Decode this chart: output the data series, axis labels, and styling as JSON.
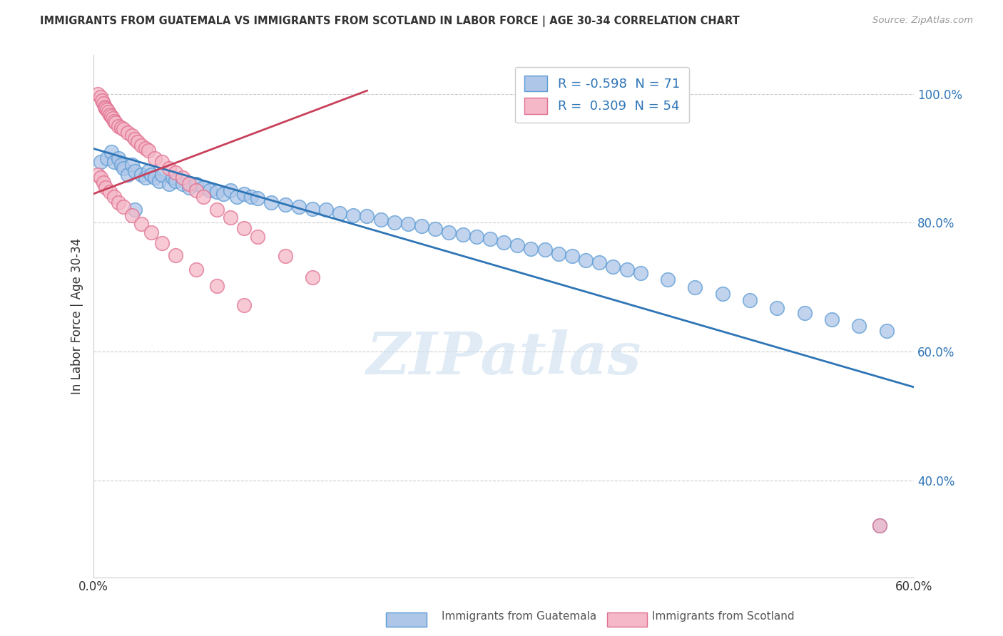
{
  "title": "IMMIGRANTS FROM GUATEMALA VS IMMIGRANTS FROM SCOTLAND IN LABOR FORCE | AGE 30-34 CORRELATION CHART",
  "source": "Source: ZipAtlas.com",
  "xlabel_blue": "Immigrants from Guatemala",
  "xlabel_pink": "Immigrants from Scotland",
  "ylabel": "In Labor Force | Age 30-34",
  "xlim": [
    0.0,
    0.6
  ],
  "ylim": [
    0.25,
    1.06
  ],
  "yticks": [
    0.4,
    0.6,
    0.8,
    1.0
  ],
  "ytick_labels": [
    "40.0%",
    "60.0%",
    "80.0%",
    "100.0%"
  ],
  "xticks": [
    0.0,
    0.1,
    0.2,
    0.3,
    0.4,
    0.5,
    0.6
  ],
  "xtick_labels": [
    "0.0%",
    "",
    "",
    "",
    "",
    "",
    "60.0%"
  ],
  "R_blue": -0.598,
  "N_blue": 71,
  "R_pink": 0.309,
  "N_pink": 54,
  "blue_color": "#aec6e8",
  "blue_edge_color": "#5b9bd5",
  "blue_line_color": "#2e75b6",
  "pink_color": "#f4b8c8",
  "pink_edge_color": "#e07090",
  "pink_line_color": "#c9405a",
  "legend_R_color": "#2e75b6",
  "watermark": "ZIPatlas",
  "blue_trend_x0": 0.0,
  "blue_trend_y0": 0.915,
  "blue_trend_x1": 0.6,
  "blue_trend_y1": 0.545,
  "pink_trend_x0": 0.0,
  "pink_trend_y0": 0.845,
  "pink_trend_x1": 0.2,
  "pink_trend_y1": 1.005,
  "blue_x": [
    0.005,
    0.01,
    0.013,
    0.015,
    0.018,
    0.02,
    0.022,
    0.025,
    0.028,
    0.03,
    0.035,
    0.038,
    0.04,
    0.042,
    0.045,
    0.048,
    0.05,
    0.055,
    0.058,
    0.06,
    0.065,
    0.07,
    0.075,
    0.08,
    0.085,
    0.09,
    0.095,
    0.1,
    0.105,
    0.11,
    0.115,
    0.12,
    0.13,
    0.14,
    0.15,
    0.16,
    0.17,
    0.18,
    0.19,
    0.2,
    0.21,
    0.22,
    0.23,
    0.24,
    0.25,
    0.26,
    0.27,
    0.28,
    0.29,
    0.3,
    0.31,
    0.32,
    0.33,
    0.34,
    0.35,
    0.36,
    0.37,
    0.38,
    0.39,
    0.4,
    0.42,
    0.44,
    0.46,
    0.48,
    0.5,
    0.52,
    0.54,
    0.56,
    0.58,
    0.03,
    0.575
  ],
  "blue_y": [
    0.895,
    0.9,
    0.91,
    0.895,
    0.9,
    0.89,
    0.885,
    0.875,
    0.89,
    0.88,
    0.875,
    0.87,
    0.88,
    0.875,
    0.87,
    0.865,
    0.875,
    0.86,
    0.87,
    0.865,
    0.86,
    0.855,
    0.86,
    0.855,
    0.85,
    0.848,
    0.845,
    0.85,
    0.84,
    0.845,
    0.84,
    0.838,
    0.832,
    0.828,
    0.825,
    0.822,
    0.82,
    0.815,
    0.812,
    0.81,
    0.805,
    0.8,
    0.798,
    0.795,
    0.79,
    0.785,
    0.782,
    0.778,
    0.775,
    0.77,
    0.765,
    0.76,
    0.758,
    0.752,
    0.748,
    0.742,
    0.738,
    0.732,
    0.728,
    0.722,
    0.712,
    0.7,
    0.69,
    0.68,
    0.668,
    0.66,
    0.65,
    0.64,
    0.632,
    0.82,
    0.33
  ],
  "pink_x": [
    0.003,
    0.005,
    0.006,
    0.007,
    0.008,
    0.009,
    0.01,
    0.011,
    0.012,
    0.013,
    0.014,
    0.015,
    0.016,
    0.018,
    0.02,
    0.022,
    0.025,
    0.028,
    0.03,
    0.032,
    0.035,
    0.038,
    0.04,
    0.045,
    0.05,
    0.055,
    0.06,
    0.065,
    0.07,
    0.075,
    0.08,
    0.09,
    0.1,
    0.11,
    0.12,
    0.14,
    0.16,
    0.003,
    0.005,
    0.007,
    0.009,
    0.012,
    0.015,
    0.018,
    0.022,
    0.028,
    0.035,
    0.042,
    0.05,
    0.06,
    0.075,
    0.09,
    0.11,
    0.575
  ],
  "pink_y": [
    1.0,
    0.995,
    0.99,
    0.985,
    0.98,
    0.978,
    0.975,
    0.972,
    0.968,
    0.965,
    0.962,
    0.958,
    0.955,
    0.95,
    0.948,
    0.945,
    0.94,
    0.935,
    0.93,
    0.925,
    0.92,
    0.915,
    0.912,
    0.9,
    0.895,
    0.885,
    0.878,
    0.87,
    0.86,
    0.85,
    0.84,
    0.82,
    0.808,
    0.792,
    0.778,
    0.748,
    0.715,
    0.875,
    0.87,
    0.862,
    0.855,
    0.848,
    0.84,
    0.832,
    0.825,
    0.812,
    0.798,
    0.785,
    0.768,
    0.75,
    0.728,
    0.702,
    0.672,
    0.33
  ]
}
